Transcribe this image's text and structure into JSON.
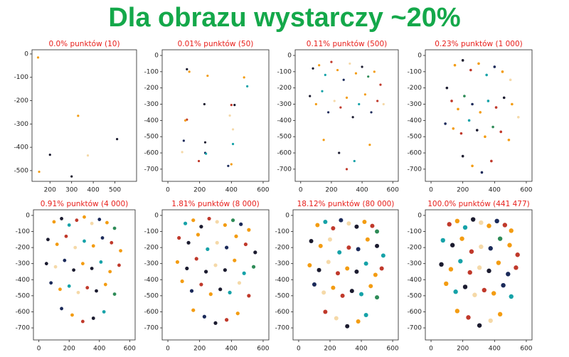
{
  "title": "Dla obrazu wystarczy ~20%",
  "chart_data": [
    {
      "type": "scatter",
      "title": "0.0% punktów (10)",
      "xlim": [
        117,
        600
      ],
      "ylim": [
        -546,
        18
      ],
      "xticks": [
        200,
        300,
        400,
        500
      ],
      "yticks": [
        0,
        -100,
        -200,
        -300,
        -400,
        -500
      ],
      "marker_size": 1.6,
      "points": {
        "x": [
          145,
          330,
          510,
          200,
          375,
          150,
          300
        ],
        "y": [
          -15,
          -265,
          -365,
          -432,
          -435,
          -505,
          -525
        ],
        "colors": [
          "#f39c12",
          "#f39c12",
          "#1b1b2f",
          "#1b1b2f",
          "#f5d9a8",
          "#f39c12",
          "#1b1b2f"
        ]
      }
    },
    {
      "type": "scatter",
      "title": "0.01% punktów (50)",
      "xlim": [
        -36,
        636
      ],
      "ylim": [
        -775,
        35
      ],
      "xticks": [
        0,
        200,
        400,
        600
      ],
      "yticks": [
        0,
        -100,
        -200,
        -300,
        -400,
        -500,
        -600,
        -700
      ],
      "marker_size": 1.6,
      "points": {
        "x": [
          120,
          135,
          250,
          480,
          500,
          230,
          120,
          110,
          400,
          420,
          390,
          410,
          235,
          235,
          240,
          410,
          100,
          195,
          380,
          400,
          90
        ],
        "y": [
          -85,
          -100,
          -125,
          -135,
          -190,
          -300,
          -395,
          -400,
          -305,
          -305,
          -370,
          -455,
          -535,
          -600,
          -605,
          -545,
          -525,
          -650,
          -680,
          -670,
          -595
        ],
        "colors": [
          "#1b1b2f",
          "#f39c12",
          "#f39c12",
          "#f39c12",
          "#16a2a8",
          "#1b1b2f",
          "#c0392b",
          "#f39c12",
          "#c0392b",
          "#1b1b2f",
          "#f5d9a8",
          "#f5d9a8",
          "#1b1b2f",
          "#1b2a5a",
          "#16a2a8",
          "#16a2a8",
          "#1b2a5a",
          "#c0392b",
          "#1b2a5a",
          "#f39c12",
          "#f5d9a8"
        ]
      }
    },
    {
      "type": "scatter",
      "title": "0.11% punktów (500)",
      "xlim": [
        -36,
        636
      ],
      "ylim": [
        -775,
        35
      ],
      "xticks": [
        0,
        200,
        400,
        600
      ],
      "yticks": [
        0,
        -100,
        -200,
        -300,
        -400,
        -500,
        -600,
        -700
      ],
      "marker_size": 1.6,
      "points": {
        "x": [
          80,
          120,
          160,
          200,
          240,
          280,
          320,
          360,
          400,
          440,
          480,
          520,
          60,
          100,
          140,
          180,
          220,
          260,
          300,
          340,
          380,
          420,
          460,
          500,
          540,
          150,
          250,
          350,
          450,
          300
        ],
        "y": [
          -80,
          -60,
          -120,
          -40,
          -90,
          -150,
          -50,
          -110,
          -70,
          -130,
          -100,
          -180,
          -250,
          -300,
          -220,
          -350,
          -280,
          -320,
          -260,
          -380,
          -300,
          -240,
          -350,
          -280,
          -300,
          -520,
          -600,
          -650,
          -550,
          -700
        ],
        "colors": [
          "#1b1b2f",
          "#f39c12",
          "#16a2a8",
          "#c0392b",
          "#f39c12",
          "#1b2a5a",
          "#f5d9a8",
          "#f39c12",
          "#1b1b2f",
          "#2e8b57",
          "#f39c12",
          "#c0392b",
          "#1b1b2f",
          "#f39c12",
          "#16a2a8",
          "#1b2a5a",
          "#f5d9a8",
          "#c0392b",
          "#f39c12",
          "#1b1b2f",
          "#16a2a8",
          "#f39c12",
          "#1b2a5a",
          "#c0392b",
          "#f5d9a8",
          "#f39c12",
          "#1b1b2f",
          "#16a2a8",
          "#f39c12",
          "#c0392b"
        ]
      }
    },
    {
      "type": "scatter",
      "title": "0.23% punktów (1 000)",
      "xlim": [
        -36,
        636
      ],
      "ylim": [
        -775,
        35
      ],
      "xticks": [
        0,
        200,
        400,
        600
      ],
      "yticks": [
        0,
        -100,
        -200,
        -300,
        -400,
        -500,
        -600,
        -700
      ],
      "marker_size": 1.8,
      "points": {
        "x": [
          150,
          200,
          250,
          300,
          350,
          400,
          450,
          500,
          100,
          130,
          170,
          210,
          260,
          310,
          360,
          410,
          460,
          510,
          550,
          90,
          140,
          190,
          240,
          290,
          340,
          390,
          440,
          490,
          200,
          260,
          320,
          380
        ],
        "y": [
          -60,
          -30,
          -90,
          -50,
          -120,
          -70,
          -100,
          -150,
          -200,
          -280,
          -330,
          -250,
          -300,
          -350,
          -280,
          -320,
          -260,
          -300,
          -380,
          -420,
          -450,
          -480,
          -400,
          -460,
          -500,
          -440,
          -470,
          -520,
          -620,
          -680,
          -720,
          -650
        ],
        "colors": [
          "#f39c12",
          "#1b1b2f",
          "#c0392b",
          "#f39c12",
          "#16a2a8",
          "#1b2a5a",
          "#f39c12",
          "#f5d9a8",
          "#1b1b2f",
          "#c0392b",
          "#f39c12",
          "#2e8b57",
          "#1b2a5a",
          "#f39c12",
          "#16a2a8",
          "#c0392b",
          "#1b1b2f",
          "#f39c12",
          "#f5d9a8",
          "#1b2a5a",
          "#f39c12",
          "#c0392b",
          "#16a2a8",
          "#1b1b2f",
          "#f39c12",
          "#2e8b57",
          "#c0392b",
          "#f39c12",
          "#1b1b2f",
          "#f39c12",
          "#1b2a5a",
          "#c0392b"
        ]
      }
    },
    {
      "type": "scatter",
      "title": "0.91% punktów (4 000)",
      "xlim": [
        -36,
        636
      ],
      "ylim": [
        -775,
        35
      ],
      "xticks": [
        0,
        200,
        400,
        600
      ],
      "yticks": [
        0,
        -100,
        -200,
        -300,
        -400,
        -500,
        -600,
        -700
      ],
      "marker_size": 2.4,
      "points": {
        "x": [
          100,
          150,
          200,
          250,
          300,
          350,
          400,
          450,
          500,
          60,
          120,
          180,
          240,
          300,
          360,
          420,
          480,
          540,
          50,
          110,
          170,
          230,
          290,
          350,
          410,
          470,
          530,
          80,
          140,
          200,
          260,
          320,
          380,
          440,
          500,
          150,
          220,
          290,
          360,
          430
        ],
        "y": [
          -40,
          -20,
          -60,
          -30,
          -10,
          -50,
          -25,
          -45,
          -80,
          -150,
          -180,
          -130,
          -200,
          -160,
          -190,
          -140,
          -170,
          -220,
          -300,
          -320,
          -280,
          -340,
          -300,
          -330,
          -290,
          -350,
          -310,
          -420,
          -460,
          -440,
          -480,
          -450,
          -470,
          -430,
          -490,
          -580,
          -620,
          -660,
          -640,
          -600
        ],
        "colors": [
          "#f39c12",
          "#1b1b2f",
          "#16a2a8",
          "#c0392b",
          "#f39c12",
          "#f5d9a8",
          "#1b2a5a",
          "#f39c12",
          "#2e8b57",
          "#1b1b2f",
          "#f39c12",
          "#c0392b",
          "#f5d9a8",
          "#16a2a8",
          "#f39c12",
          "#1b2a5a",
          "#c0392b",
          "#f39c12",
          "#1b1b2f",
          "#f5d9a8",
          "#1b2a5a",
          "#1b1b2f",
          "#f39c12",
          "#1b1b2f",
          "#16a2a8",
          "#f39c12",
          "#c0392b",
          "#1b2a5a",
          "#f39c12",
          "#16a2a8",
          "#f5d9a8",
          "#c0392b",
          "#1b1b2f",
          "#f39c12",
          "#2e8b57",
          "#1b2a5a",
          "#f39c12",
          "#c0392b",
          "#1b1b2f",
          "#16a2a8"
        ]
      }
    },
    {
      "type": "scatter",
      "title": "1.81% punktów (8 000)",
      "xlim": [
        -36,
        636
      ],
      "ylim": [
        -775,
        35
      ],
      "xticks": [
        0,
        200,
        400,
        600
      ],
      "yticks": [
        0,
        -100,
        -200,
        -300,
        -400,
        -500,
        -600,
        -700
      ],
      "marker_size": 2.6,
      "points": {
        "x": [
          110,
          160,
          210,
          260,
          310,
          360,
          410,
          460,
          510,
          70,
          130,
          190,
          250,
          310,
          370,
          430,
          490,
          550,
          60,
          120,
          180,
          240,
          300,
          360,
          420,
          480,
          540,
          90,
          150,
          210,
          270,
          330,
          390,
          450,
          510,
          160,
          230,
          300,
          370,
          440
        ],
        "y": [
          -50,
          -30,
          -70,
          -20,
          -40,
          -60,
          -30,
          -55,
          -90,
          -140,
          -170,
          -120,
          -210,
          -170,
          -200,
          -130,
          -180,
          -230,
          -290,
          -330,
          -270,
          -350,
          -310,
          -340,
          -280,
          -360,
          -320,
          -410,
          -470,
          -430,
          -490,
          -460,
          -480,
          -420,
          -500,
          -590,
          -630,
          -670,
          -650,
          -610
        ],
        "colors": [
          "#16a2a8",
          "#f39c12",
          "#1b1b2f",
          "#c0392b",
          "#f5d9a8",
          "#f39c12",
          "#2e8b57",
          "#1b2a5a",
          "#f39c12",
          "#c0392b",
          "#1b1b2f",
          "#f39c12",
          "#16a2a8",
          "#f5d9a8",
          "#1b2a5a",
          "#f39c12",
          "#c0392b",
          "#1b1b2f",
          "#f39c12",
          "#1b1b2f",
          "#c0392b",
          "#1b1b2f",
          "#f5d9a8",
          "#1b1b2f",
          "#f39c12",
          "#16a2a8",
          "#2e8b57",
          "#f39c12",
          "#1b2a5a",
          "#c0392b",
          "#f39c12",
          "#1b1b2f",
          "#16a2a8",
          "#f5d9a8",
          "#c0392b",
          "#f39c12",
          "#1b2a5a",
          "#1b1b2f",
          "#c0392b",
          "#f39c12"
        ]
      }
    },
    {
      "type": "scatter",
      "title": "18.12% punktów (80 000)",
      "xlim": [
        -36,
        636
      ],
      "ylim": [
        -775,
        35
      ],
      "xticks": [
        0,
        200,
        400,
        600
      ],
      "yticks": [
        0,
        -100,
        -200,
        -300,
        -400,
        -500,
        -600,
        -700
      ],
      "marker_size": 3,
      "points": {
        "x": [
          120,
          170,
          220,
          270,
          320,
          370,
          420,
          470,
          500,
          80,
          140,
          200,
          260,
          320,
          380,
          440,
          500,
          540,
          70,
          130,
          190,
          250,
          310,
          370,
          430,
          490,
          530,
          100,
          160,
          220,
          280,
          340,
          400,
          460,
          500,
          170,
          240,
          310,
          380,
          430
        ],
        "y": [
          -60,
          -40,
          -80,
          -30,
          -50,
          -70,
          -40,
          -65,
          -100,
          -160,
          -190,
          -150,
          -230,
          -200,
          -210,
          -150,
          -190,
          -250,
          -310,
          -340,
          -290,
          -360,
          -330,
          -350,
          -300,
          -370,
          -330,
          -430,
          -480,
          -450,
          -500,
          -470,
          -490,
          -440,
          -510,
          -600,
          -640,
          -690,
          -660,
          -620
        ],
        "colors": [
          "#f39c12",
          "#16a2a8",
          "#c0392b",
          "#1b2a5a",
          "#f5d9a8",
          "#1b1b2f",
          "#f39c12",
          "#c0392b",
          "#2e8b57",
          "#1b1b2f",
          "#f39c12",
          "#f5d9a8",
          "#16a2a8",
          "#c0392b",
          "#1b2a5a",
          "#f39c12",
          "#1b1b2f",
          "#16a2a8",
          "#f39c12",
          "#1b1b2f",
          "#f5d9a8",
          "#c0392b",
          "#f39c12",
          "#1b1b2f",
          "#16a2a8",
          "#f39c12",
          "#c0392b",
          "#1b2a5a",
          "#f5d9a8",
          "#f39c12",
          "#c0392b",
          "#1b1b2f",
          "#16a2a8",
          "#f39c12",
          "#2e8b57",
          "#c0392b",
          "#f5d9a8",
          "#1b1b2f",
          "#f39c12",
          "#16a2a8"
        ]
      }
    },
    {
      "type": "scatter",
      "title": "100.0% punktów (441 477)",
      "xlim": [
        -36,
        636
      ],
      "ylim": [
        -775,
        35
      ],
      "xticks": [
        0,
        200,
        400,
        600
      ],
      "yticks": [
        0,
        -100,
        -200,
        -300,
        -400,
        -500,
        -600,
        -700
      ],
      "marker_size": 3.2,
      "points": {
        "x": [
          115,
          165,
          215,
          265,
          315,
          365,
          415,
          465,
          505,
          75,
          135,
          195,
          255,
          315,
          375,
          435,
          495,
          545,
          65,
          125,
          185,
          245,
          305,
          365,
          425,
          485,
          535,
          95,
          155,
          215,
          275,
          335,
          395,
          455,
          505,
          165,
          235,
          305,
          375,
          435
        ],
        "y": [
          -55,
          -35,
          -75,
          -25,
          -45,
          -65,
          -35,
          -60,
          -95,
          -155,
          -185,
          -145,
          -225,
          -195,
          -205,
          -145,
          -185,
          -245,
          -305,
          -335,
          -285,
          -355,
          -325,
          -345,
          -295,
          -365,
          -325,
          -425,
          -475,
          -445,
          -495,
          -465,
          -485,
          -435,
          -505,
          -595,
          -635,
          -685,
          -655,
          -615
        ],
        "colors": [
          "#c0392b",
          "#f39c12",
          "#16a2a8",
          "#1b1b2f",
          "#f5d9a8",
          "#f39c12",
          "#1b2a5a",
          "#c0392b",
          "#f39c12",
          "#16a2a8",
          "#1b1b2f",
          "#f39c12",
          "#c0392b",
          "#f5d9a8",
          "#1b2a5a",
          "#2e8b57",
          "#f39c12",
          "#c0392b",
          "#1b1b2f",
          "#f39c12",
          "#16a2a8",
          "#c0392b",
          "#f5d9a8",
          "#1b1b2f",
          "#f39c12",
          "#1b2a5a",
          "#c0392b",
          "#f39c12",
          "#16a2a8",
          "#1b1b2f",
          "#f5d9a8",
          "#c0392b",
          "#f39c12",
          "#1b2a5a",
          "#16a2a8",
          "#f39c12",
          "#c0392b",
          "#1b1b2f",
          "#f5d9a8",
          "#f39c12"
        ]
      }
    }
  ]
}
